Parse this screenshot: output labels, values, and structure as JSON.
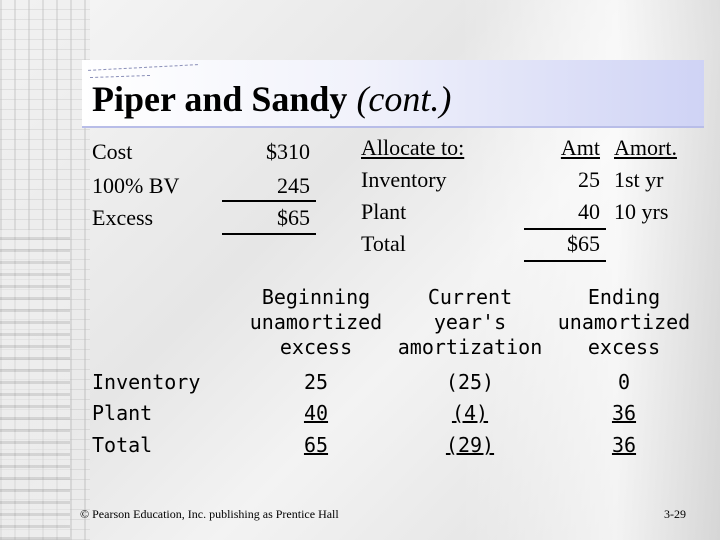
{
  "title": {
    "main": "Piper and Sandy",
    "sub": "(cont.)"
  },
  "top_left": {
    "labels": [
      "Cost",
      "100% BV",
      "Excess"
    ],
    "values": [
      "$310",
      "245",
      "$65"
    ]
  },
  "allocate": {
    "labels": [
      "Allocate to:",
      "Inventory",
      "Plant",
      "Total"
    ],
    "amt_header": "Amt",
    "amounts": [
      "25",
      "40",
      "$65"
    ],
    "amort_header": "Amort.",
    "amort": [
      "1st yr",
      "10 yrs"
    ]
  },
  "schedule": {
    "headers": [
      [
        "Beginning",
        "unamortized",
        "excess"
      ],
      [
        "Current",
        "year's",
        "amortization"
      ],
      [
        "Ending",
        "unamortized",
        "excess"
      ]
    ],
    "rows": [
      {
        "label": "Inventory",
        "beginning": "25",
        "current": "(25)",
        "ending": "0"
      },
      {
        "label": "Plant",
        "beginning": "40",
        "current": "(4)",
        "ending": "36"
      },
      {
        "label": "Total",
        "beginning": "65",
        "current": "(29)",
        "ending": "36"
      }
    ]
  },
  "footer": {
    "copyright": "© Pearson Education, Inc. publishing as Prentice Hall",
    "slide_number": "3-29"
  }
}
